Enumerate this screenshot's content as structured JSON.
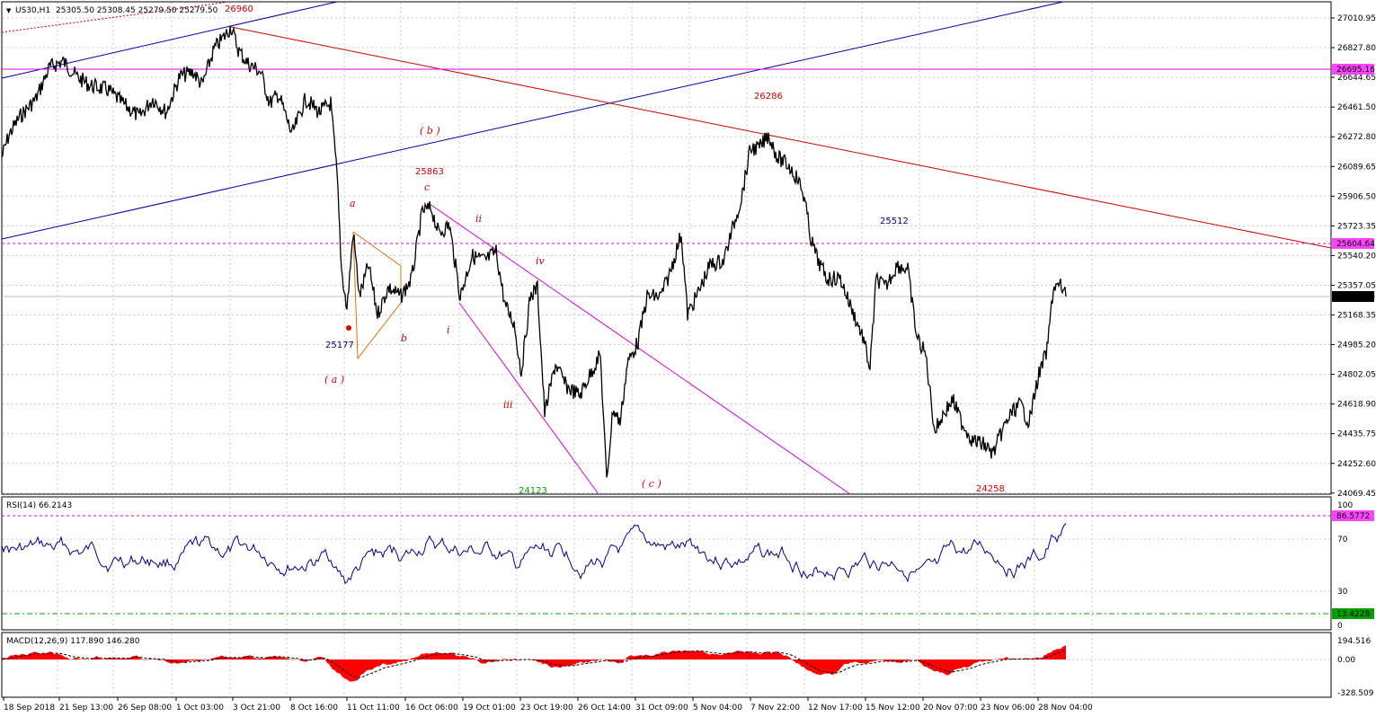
{
  "header": {
    "symbol": "US30,H1",
    "ohlc": "25305.50 25308.45 25279.50 25279.50"
  },
  "price_axis": {
    "ticks": [
      "27010.95",
      "26827.80",
      "26644.65",
      "26461.50",
      "26272.80",
      "26089.65",
      "25906.50",
      "25723.35",
      "25540.20",
      "25357.05",
      "25168.35",
      "24985.20",
      "24802.05",
      "24618.90",
      "24435.75",
      "24252.60",
      "24069.45"
    ],
    "hline_magenta": "26695.16",
    "hline_dashed": "25604.64",
    "current_price": "25279.50"
  },
  "annotations": {
    "p26960": "26960",
    "p26286": "26286",
    "p25863": "25863",
    "p25512": "25512",
    "p25177": "25177",
    "p24123": "24123",
    "p24258": "24258",
    "wave_b_big": "( b )",
    "wave_a_big": "( a )",
    "wave_c_big": "( c )",
    "a": "a",
    "b": "b",
    "c": "c",
    "i": "i",
    "ii": "ii",
    "iii": "iii",
    "iv": "iv"
  },
  "rsi": {
    "title": "RSI(14) 66.2143",
    "level_high": "86.5772",
    "level_low": "13.4228",
    "ticks": [
      "100",
      "70",
      "30",
      "0"
    ]
  },
  "macd": {
    "title": "MACD(12,26,9) 117.890 146.280",
    "ticks": [
      "194.516",
      "0.00",
      "-328.509"
    ]
  },
  "time_axis": [
    "18 Sep 2018",
    "21 Sep 13:00",
    "26 Sep 08:00",
    "1 Oct 03:00",
    "3 Oct 21:00",
    "8 Oct 16:00",
    "11 Oct 11:00",
    "16 Oct 06:00",
    "19 Oct 01:00",
    "23 Oct 19:00",
    "26 Oct 14:00",
    "31 Oct 09:00",
    "5 Nov 04:00",
    "7 Nov 22:00",
    "12 Nov 17:00",
    "15 Nov 12:00",
    "20 Nov 07:00",
    "23 Nov 06:00",
    "28 Nov 04:00"
  ],
  "colors": {
    "price_line": "#000000",
    "channel": "#0000a0",
    "trend_red": "#cc0000",
    "magenta": "#e000e0",
    "orange": "#e07010",
    "rsi_line": "#000090",
    "macd_hist": "#ff0000",
    "tag_magenta": "#ff44ff",
    "tag_green": "#00a000"
  }
}
